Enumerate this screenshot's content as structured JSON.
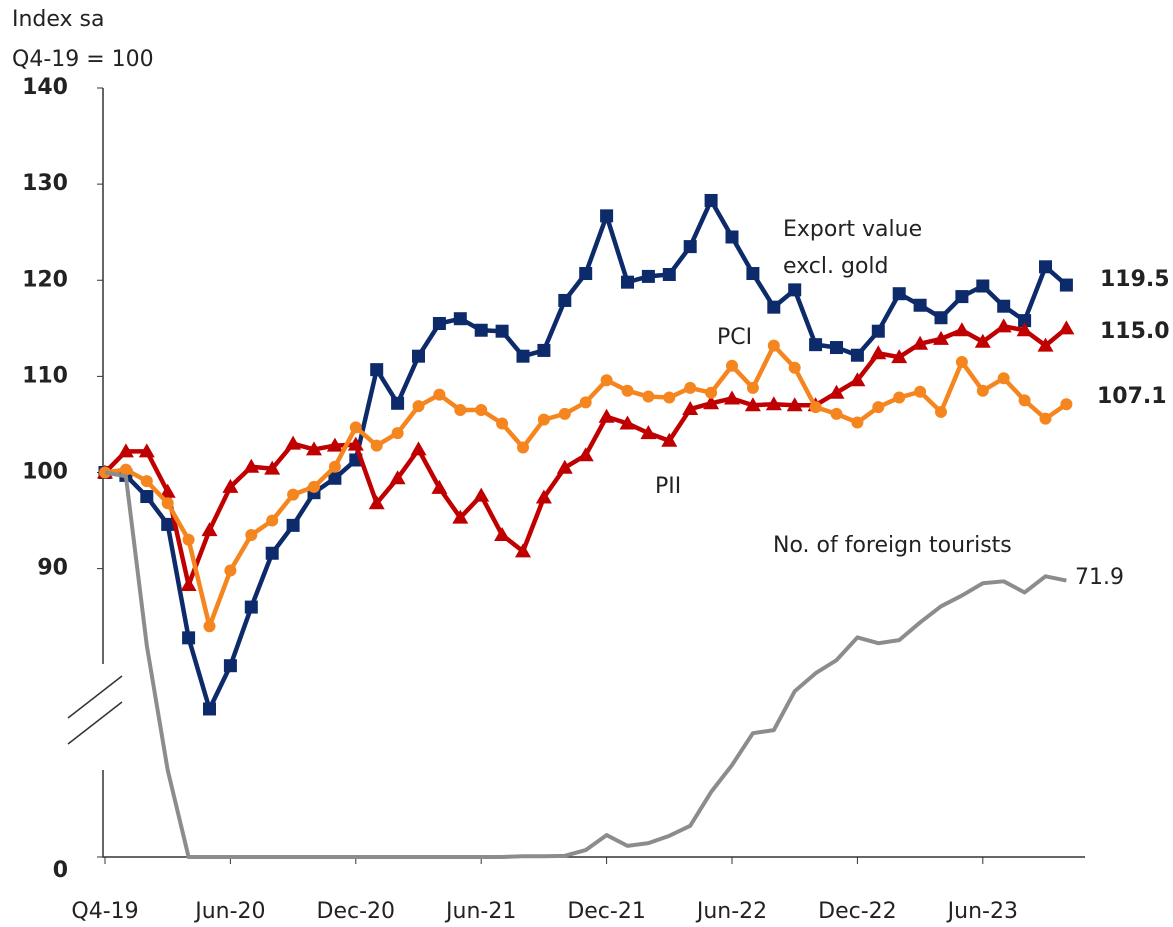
{
  "chart_data": {
    "type": "line",
    "y_title": [
      "Index sa",
      "Q4-19 = 100"
    ],
    "categories": [
      "Q4-19",
      null,
      null,
      null,
      null,
      null,
      "Jun-20",
      null,
      null,
      null,
      null,
      null,
      "Dec-20",
      null,
      null,
      null,
      null,
      null,
      "Jun-21",
      null,
      null,
      null,
      null,
      null,
      "Dec-21",
      null,
      null,
      null,
      null,
      null,
      "Jun-22",
      null,
      null,
      null,
      null,
      null,
      "Dec-22",
      null,
      null,
      null,
      null,
      null,
      "Jun-23",
      null,
      null,
      null,
      null
    ],
    "ylim": [
      60,
      140
    ],
    "yticks": [
      90,
      100,
      110,
      120,
      130,
      140
    ],
    "y2lim": [
      0,
      200
    ],
    "y2ticks": [
      0
    ],
    "series": [
      {
        "name": [
          "Export value",
          "excl. gold"
        ],
        "color": "#0d2a6b",
        "marker": "square",
        "end_label": "119.5",
        "values": [
          100,
          99.7,
          97.5,
          94.6,
          82.8,
          75.4,
          79.9,
          86.0,
          91.6,
          94.5,
          97.9,
          99.4,
          101.3,
          110.7,
          107.2,
          112.1,
          115.5,
          116.0,
          114.8,
          114.7,
          112.1,
          112.7,
          117.9,
          120.7,
          126.7,
          119.8,
          120.4,
          120.6,
          123.5,
          128.3,
          124.5,
          120.7,
          117.2,
          119.0,
          113.3,
          113.0,
          112.2,
          114.7,
          118.6,
          117.4,
          116.1,
          118.3,
          119.4,
          117.3,
          115.8,
          121.4,
          119.5
        ]
      },
      {
        "name": [
          "PCI"
        ],
        "color": "#c00000",
        "marker": "triangle",
        "end_label": "115.0",
        "values": [
          100,
          102.2,
          102.2,
          98,
          88.3,
          94,
          98.5,
          100.6,
          100.4,
          103,
          102.4,
          102.8,
          102.9,
          96.8,
          99.4,
          102.4,
          98.4,
          95.3,
          97.6,
          93.5,
          91.8,
          97.4,
          100.5,
          101.8,
          105.8,
          105.1,
          104.1,
          103.3,
          106.6,
          107.2,
          107.7,
          107.0,
          107.1,
          107.0,
          107.0,
          108.3,
          109.6,
          112.4,
          112.0,
          113.4,
          113.9,
          114.8,
          113.6,
          115.2,
          114.8,
          113.2,
          115.0
        ]
      },
      {
        "name": [
          "PII"
        ],
        "color": "#f5851f",
        "marker": "circle",
        "end_label": "107.1",
        "values": [
          100,
          100.3,
          99.1,
          96.8,
          93,
          84,
          89.8,
          93.5,
          95,
          97.7,
          98.5,
          100.6,
          104.7,
          102.8,
          104.1,
          106.9,
          108.1,
          106.5,
          106.5,
          105.1,
          102.6,
          105.5,
          106.1,
          107.3,
          109.6,
          108.5,
          107.9,
          107.8,
          108.8,
          108.3,
          111.1,
          108.8,
          113.2,
          110.9,
          106.8,
          106.1,
          105.2,
          106.8,
          107.8,
          108.4,
          106.3,
          111.5,
          108.5,
          109.8,
          107.5,
          105.6,
          107.1
        ]
      },
      {
        "name": [
          "No. of foreign tourists"
        ],
        "color": "#8c8c8c",
        "marker": "none",
        "axis": "y2",
        "end_label": "71.9",
        "values": [
          100,
          99,
          55,
          22.6,
          0,
          0,
          0,
          0,
          0,
          0,
          0,
          0,
          0,
          0,
          0,
          0,
          0,
          0,
          0,
          0,
          0.2,
          0.2,
          0.3,
          1.8,
          5.7,
          2.9,
          3.6,
          5.5,
          8.1,
          16.9,
          23.9,
          32.2,
          33,
          43.1,
          47.8,
          51.2,
          57.1,
          55.6,
          56.4,
          61,
          65.2,
          68,
          71.2,
          71.7,
          68.8,
          73,
          71.9
        ]
      }
    ]
  }
}
